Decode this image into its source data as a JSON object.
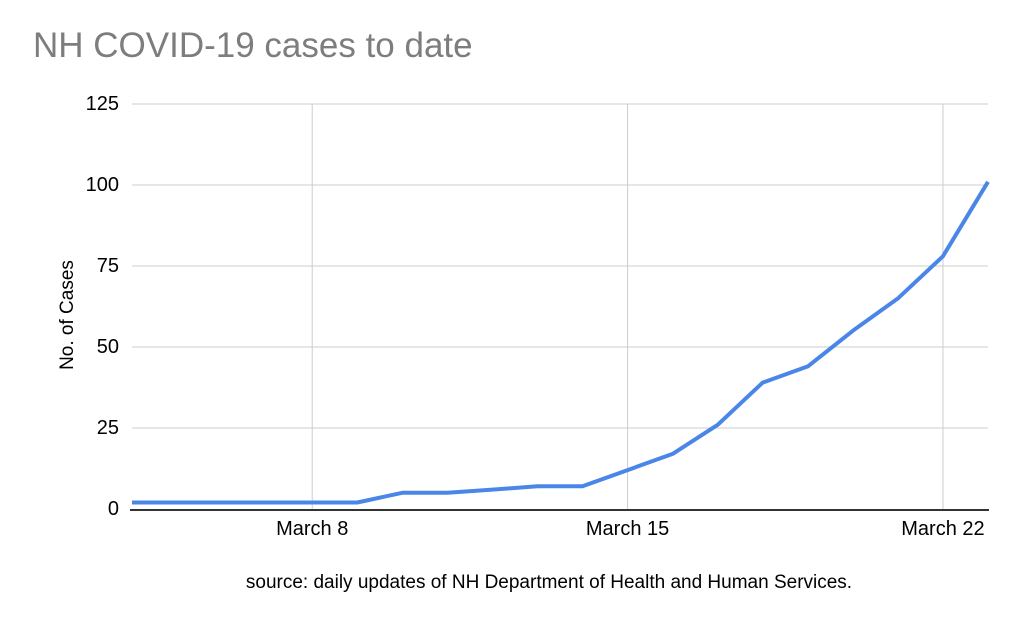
{
  "source_caption": "source: daily updates of NH Department of Health and Human Services.",
  "chart_data": {
    "type": "line",
    "title": "NH COVID-19 cases to date",
    "xlabel": "",
    "ylabel": "No. of Cases",
    "x": [
      "March 4",
      "March 5",
      "March 6",
      "March 7",
      "March 8",
      "March 9",
      "March 10",
      "March 11",
      "March 12",
      "March 13",
      "March 14",
      "March 15",
      "March 16",
      "March 17",
      "March 18",
      "March 19",
      "March 20",
      "March 21",
      "March 22",
      "March 23"
    ],
    "values": [
      2,
      2,
      2,
      2,
      2,
      2,
      5,
      5,
      6,
      7,
      7,
      12,
      17,
      26,
      39,
      44,
      55,
      65,
      78,
      101
    ],
    "ylim": [
      0,
      125
    ],
    "y_ticks": [
      0,
      25,
      50,
      75,
      100,
      125
    ],
    "x_tick_labels": [
      "March 8",
      "March 15",
      "March 22"
    ],
    "grid": true,
    "legend": "none",
    "line_color": "#4a86e8",
    "grid_color": "#cccccc",
    "axis_color": "#333333",
    "title_color": "#7d7d7d",
    "text_color": "#000000"
  }
}
